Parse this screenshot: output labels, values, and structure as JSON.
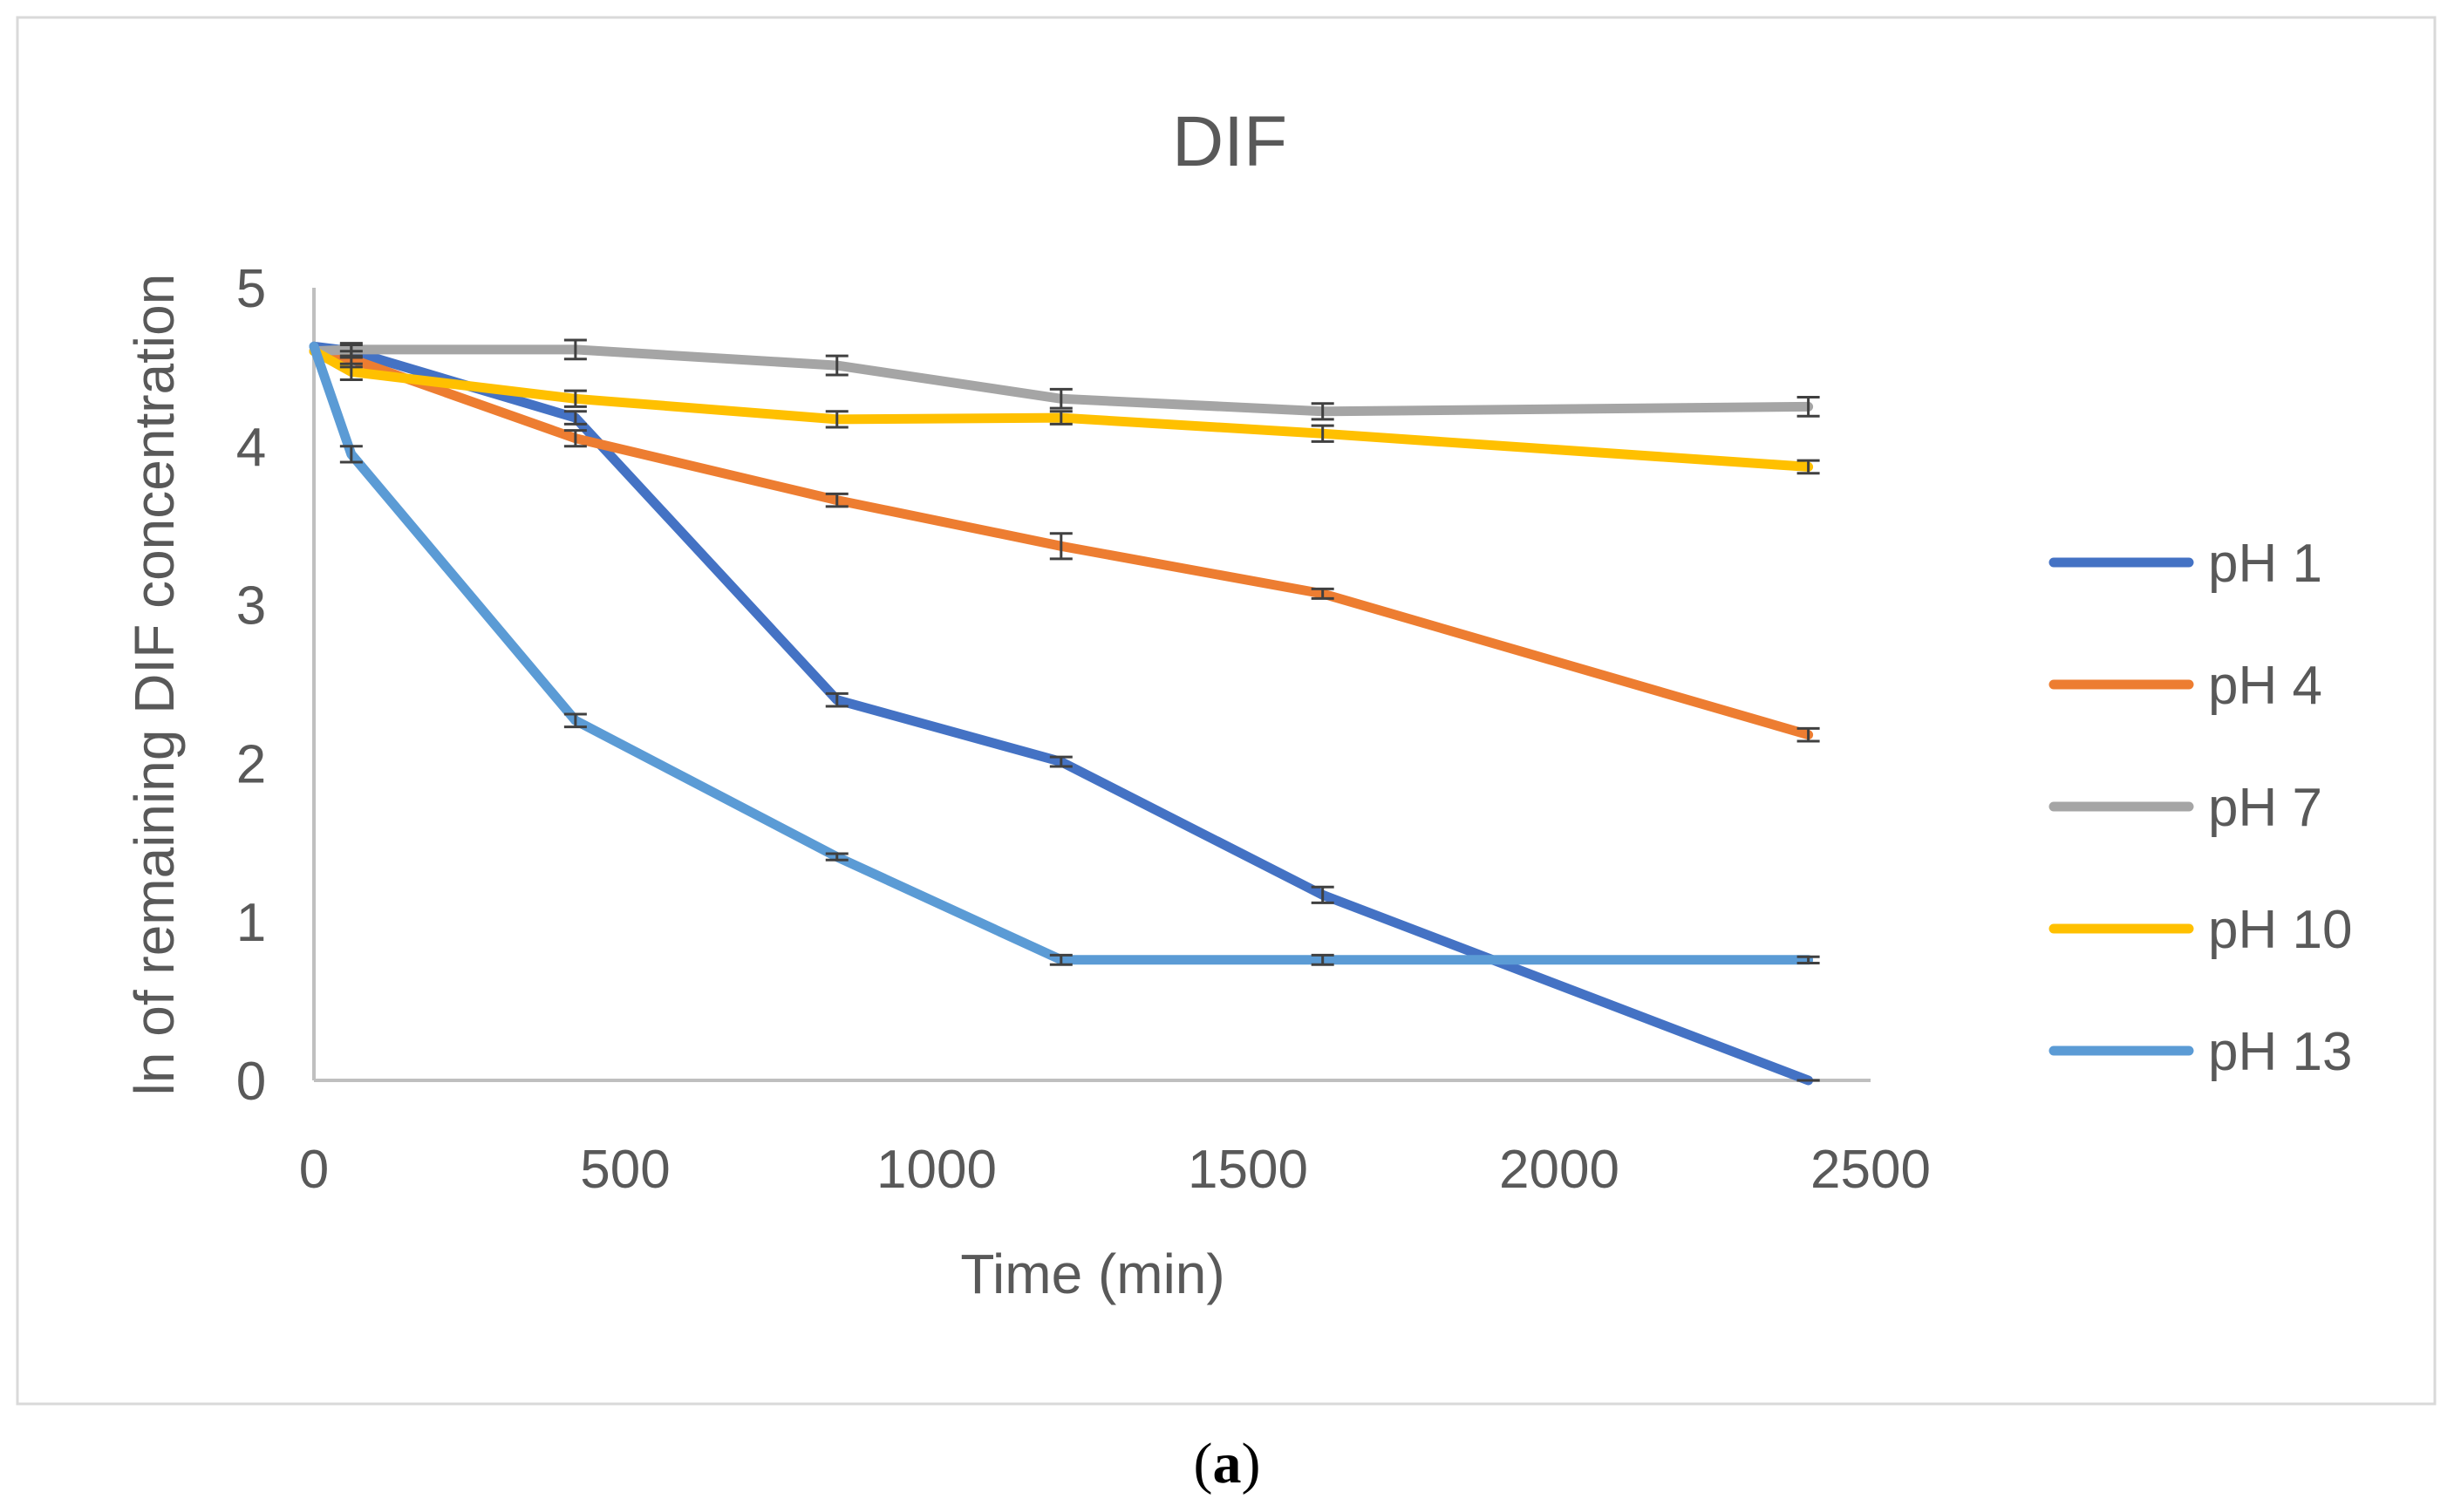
{
  "chart_data": {
    "type": "line",
    "title": "DIF",
    "xlabel": "Time (min)",
    "ylabel": "ln of remaining DIF concentration",
    "xlim": [
      0,
      2500
    ],
    "ylim": [
      0,
      5
    ],
    "xticks": [
      0,
      500,
      1000,
      1500,
      2000,
      2500
    ],
    "yticks": [
      0,
      1,
      2,
      3,
      4,
      5
    ],
    "grid": false,
    "legend_position": "right",
    "caption_open": "(",
    "caption_letter": "a",
    "caption_close": ")",
    "series": [
      {
        "name": "pH 1",
        "color": "#4472C4",
        "x": [
          0,
          60,
          420,
          840,
          1200,
          1620,
          2400
        ],
        "y": [
          4.63,
          4.6,
          4.18,
          2.4,
          2.01,
          1.17,
          0.0
        ],
        "err": [
          0.04,
          0.04,
          0.04,
          0.04,
          0.03,
          0.05,
          0.0
        ]
      },
      {
        "name": "pH 4",
        "color": "#ED7D31",
        "x": [
          0,
          60,
          420,
          840,
          1200,
          1620,
          2400
        ],
        "y": [
          4.6,
          4.55,
          4.05,
          3.66,
          3.37,
          3.07,
          2.18
        ],
        "err": [
          0.04,
          0.05,
          0.05,
          0.04,
          0.08,
          0.03,
          0.04
        ]
      },
      {
        "name": "pH 7",
        "color": "#A5A5A5",
        "x": [
          0,
          60,
          420,
          840,
          1200,
          1620,
          2400
        ],
        "y": [
          4.6,
          4.61,
          4.61,
          4.51,
          4.3,
          4.22,
          4.25
        ],
        "err": [
          0.04,
          0.04,
          0.06,
          0.06,
          0.06,
          0.05,
          0.06
        ]
      },
      {
        "name": "pH 10",
        "color": "#FFC000",
        "x": [
          0,
          60,
          420,
          840,
          1200,
          1620,
          2400
        ],
        "y": [
          4.6,
          4.47,
          4.3,
          4.17,
          4.18,
          4.08,
          3.87
        ],
        "err": [
          0.04,
          0.05,
          0.05,
          0.05,
          0.04,
          0.05,
          0.04
        ]
      },
      {
        "name": "pH 13",
        "color": "#5B9BD5",
        "x": [
          0,
          60,
          420,
          840,
          1200,
          1620,
          2400
        ],
        "y": [
          4.63,
          3.95,
          2.27,
          1.41,
          0.76,
          0.76,
          0.76
        ],
        "err": [
          0.04,
          0.05,
          0.04,
          0.02,
          0.03,
          0.03,
          0.02
        ]
      }
    ]
  }
}
